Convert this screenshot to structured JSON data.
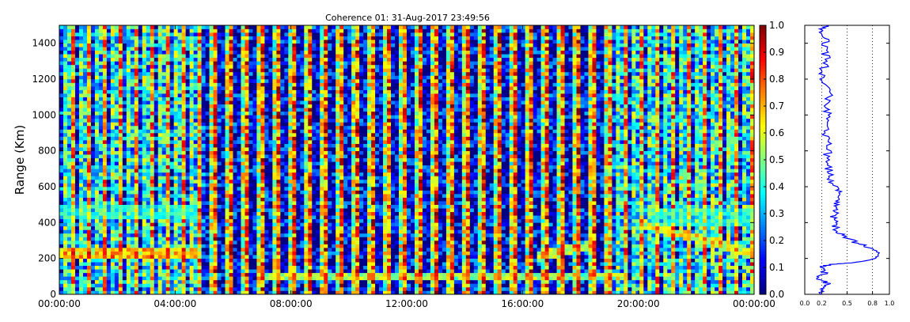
{
  "chart_data": [
    {
      "type": "heatmap",
      "title": "Coherence 01: 31-Aug-2017 23:49:56",
      "xlabel": "",
      "ylabel": "Range (Km)",
      "x_tick_labels": [
        "00:00:00",
        "04:00:00",
        "08:00:00",
        "12:00:00",
        "16:00:00",
        "20:00:00",
        "00:00:00"
      ],
      "x_tick_hours": [
        0,
        4,
        8,
        12,
        16,
        20,
        24
      ],
      "xlim_hours": [
        0,
        24
      ],
      "y_ticks": [
        0,
        200,
        400,
        600,
        800,
        1000,
        1200,
        1400
      ],
      "ylim": [
        0,
        1500
      ],
      "colorbar": {
        "ticks": [
          0.0,
          0.1,
          0.2,
          0.3,
          0.4,
          0.5,
          0.6,
          0.7,
          0.8,
          0.9,
          1.0
        ],
        "tick_labels": [
          "0.0",
          "0.1",
          "0.2",
          "0.3",
          "0.4",
          "0.5",
          "0.6",
          "0.7",
          "0.8",
          "0.9",
          "1.0"
        ],
        "colormap": "jet",
        "range": [
          0,
          1
        ]
      },
      "features": [
        {
          "description": "coherent layer",
          "range_km": [
            210,
            250
          ],
          "hours": [
            0,
            4.8
          ],
          "value": 0.9
        },
        {
          "description": "coherent band",
          "range_km": [
            430,
            500
          ],
          "hours": [
            0,
            4.8
          ],
          "value": 0.45
        },
        {
          "description": "coherent streak",
          "range_km": [
            90,
            120
          ],
          "hours": [
            7,
            19.5
          ],
          "value": 0.8
        },
        {
          "description": "rising layer",
          "range_km": [
            200,
            290
          ],
          "hours": [
            16.5,
            18.5
          ],
          "value": 0.85
        },
        {
          "description": "descending layer",
          "range_km": [
            220,
            420
          ],
          "hours": [
            20.0,
            24
          ],
          "value": 0.8
        },
        {
          "description": "coherent band",
          "range_km": [
            380,
            480
          ],
          "hours": [
            20.5,
            24
          ],
          "value": 0.45
        }
      ]
    },
    {
      "type": "line",
      "xlabel": "",
      "ylabel": "",
      "x_ticks": [
        0.0,
        0.2,
        0.5,
        0.8,
        1.0
      ],
      "x_tick_labels": [
        "0.0",
        "0.2",
        "0.5",
        "0.8",
        "1.0"
      ],
      "xlim": [
        0,
        1
      ],
      "ylim": [
        0,
        1500
      ],
      "grid_x": [
        0.2,
        0.5,
        0.8
      ],
      "series": [
        {
          "color": "#0000ff",
          "points": [
            [
              0.22,
              0
            ],
            [
              0.18,
              30
            ],
            [
              0.26,
              60
            ],
            [
              0.16,
              90
            ],
            [
              0.24,
              120
            ],
            [
              0.2,
              150
            ],
            [
              0.28,
              165
            ],
            [
              0.55,
              175
            ],
            [
              0.85,
              200
            ],
            [
              0.9,
              225
            ],
            [
              0.75,
              260
            ],
            [
              0.6,
              290
            ],
            [
              0.45,
              330
            ],
            [
              0.35,
              360
            ],
            [
              0.38,
              400
            ],
            [
              0.33,
              440
            ],
            [
              0.4,
              480
            ],
            [
              0.38,
              520
            ],
            [
              0.42,
              560
            ],
            [
              0.35,
              600
            ],
            [
              0.3,
              650
            ],
            [
              0.28,
              700
            ],
            [
              0.25,
              760
            ],
            [
              0.3,
              820
            ],
            [
              0.26,
              880
            ],
            [
              0.22,
              940
            ],
            [
              0.28,
              1000
            ],
            [
              0.25,
              1060
            ],
            [
              0.3,
              1120
            ],
            [
              0.24,
              1180
            ],
            [
              0.2,
              1240
            ],
            [
              0.28,
              1300
            ],
            [
              0.22,
              1360
            ],
            [
              0.26,
              1420
            ],
            [
              0.2,
              1470
            ],
            [
              0.25,
              1500
            ]
          ]
        }
      ]
    }
  ]
}
